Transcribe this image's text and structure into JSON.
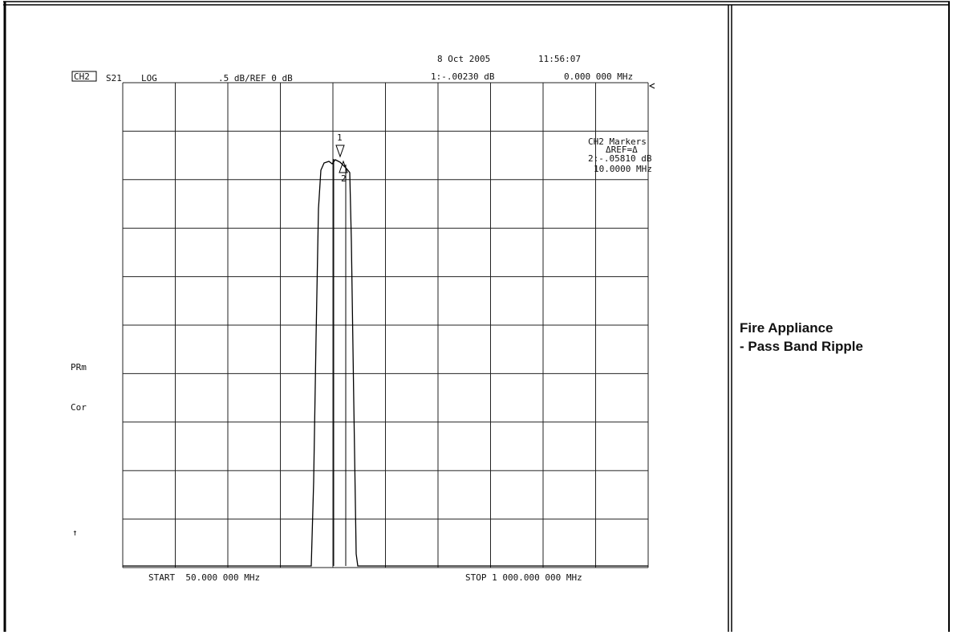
{
  "display": {
    "date": "8 Oct 2005",
    "time": "11:56:07",
    "channel": "CH2",
    "parameter": "S21",
    "format": "LOG",
    "scale": ".5 dB/REF 0 dB",
    "marker_readout": "1:-.00230 dB",
    "marker_frequency": "0.000 000 MHz",
    "marker_box": [
      "CH2 Markers",
      "ΔREF=Δ",
      "2:-.05810 dB",
      "10.0000 MHz"
    ],
    "marker_labels": [
      "1",
      "2"
    ],
    "annotations": [
      "PRm",
      "Cor",
      "↑"
    ],
    "start": "START  50.000 000 MHz",
    "stop": "STOP 1 000.000 000 MHz"
  },
  "caption": {
    "lines": [
      "Fire Appliance",
      "- Pass Band Ripple"
    ]
  }
}
